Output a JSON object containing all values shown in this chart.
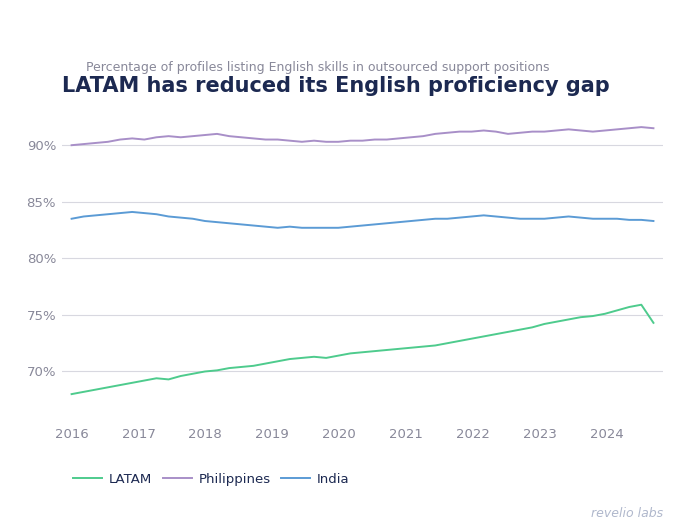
{
  "title": "LATAM has reduced its English proficiency gap",
  "subtitle": "Percentage of profiles listing English skills in outsourced support positions",
  "title_color": "#1c2951",
  "subtitle_color": "#888899",
  "background_color": "#ffffff",
  "grid_color": "#d8d8e0",
  "tick_color": "#888899",
  "watermark": "revelio labs",
  "legend": [
    "LATAM",
    "Philippines",
    "India"
  ],
  "legend_colors": [
    "#4ecb8d",
    "#a88fc8",
    "#5b9bd5"
  ],
  "ylim": [
    65.5,
    93.5
  ],
  "yticks": [
    70,
    75,
    80,
    85,
    90
  ],
  "ytick_labels": [
    "70%",
    "75%",
    "80%",
    "85%",
    "90%"
  ],
  "xtick_positions": [
    2016,
    2017,
    2018,
    2019,
    2020,
    2021,
    2022,
    2023,
    2024
  ],
  "xtick_labels": [
    "2016",
    "2017",
    "2018",
    "2019",
    "2020",
    "2021",
    "2022",
    "2023",
    "2024"
  ],
  "latam": [
    68.0,
    68.2,
    68.4,
    68.6,
    68.8,
    69.0,
    69.2,
    69.4,
    69.3,
    69.6,
    69.8,
    70.0,
    70.1,
    70.3,
    70.4,
    70.5,
    70.7,
    70.9,
    71.1,
    71.2,
    71.3,
    71.2,
    71.4,
    71.6,
    71.7,
    71.8,
    71.9,
    72.0,
    72.1,
    72.2,
    72.3,
    72.5,
    72.7,
    72.9,
    73.1,
    73.3,
    73.5,
    73.7,
    73.9,
    74.2,
    74.4,
    74.6,
    74.8,
    74.9,
    75.1,
    75.4,
    75.7,
    75.9,
    74.3
  ],
  "philippines": [
    90.0,
    90.1,
    90.2,
    90.3,
    90.5,
    90.6,
    90.5,
    90.7,
    90.8,
    90.7,
    90.8,
    90.9,
    91.0,
    90.8,
    90.7,
    90.6,
    90.5,
    90.5,
    90.4,
    90.3,
    90.4,
    90.3,
    90.3,
    90.4,
    90.4,
    90.5,
    90.5,
    90.6,
    90.7,
    90.8,
    91.0,
    91.1,
    91.2,
    91.2,
    91.3,
    91.2,
    91.0,
    91.1,
    91.2,
    91.2,
    91.3,
    91.4,
    91.3,
    91.2,
    91.3,
    91.4,
    91.5,
    91.6,
    91.5
  ],
  "india": [
    83.5,
    83.7,
    83.8,
    83.9,
    84.0,
    84.1,
    84.0,
    83.9,
    83.7,
    83.6,
    83.5,
    83.3,
    83.2,
    83.1,
    83.0,
    82.9,
    82.8,
    82.7,
    82.8,
    82.7,
    82.7,
    82.7,
    82.7,
    82.8,
    82.9,
    83.0,
    83.1,
    83.2,
    83.3,
    83.4,
    83.5,
    83.5,
    83.6,
    83.7,
    83.8,
    83.7,
    83.6,
    83.5,
    83.5,
    83.5,
    83.6,
    83.7,
    83.6,
    83.5,
    83.5,
    83.5,
    83.4,
    83.4,
    83.3
  ]
}
